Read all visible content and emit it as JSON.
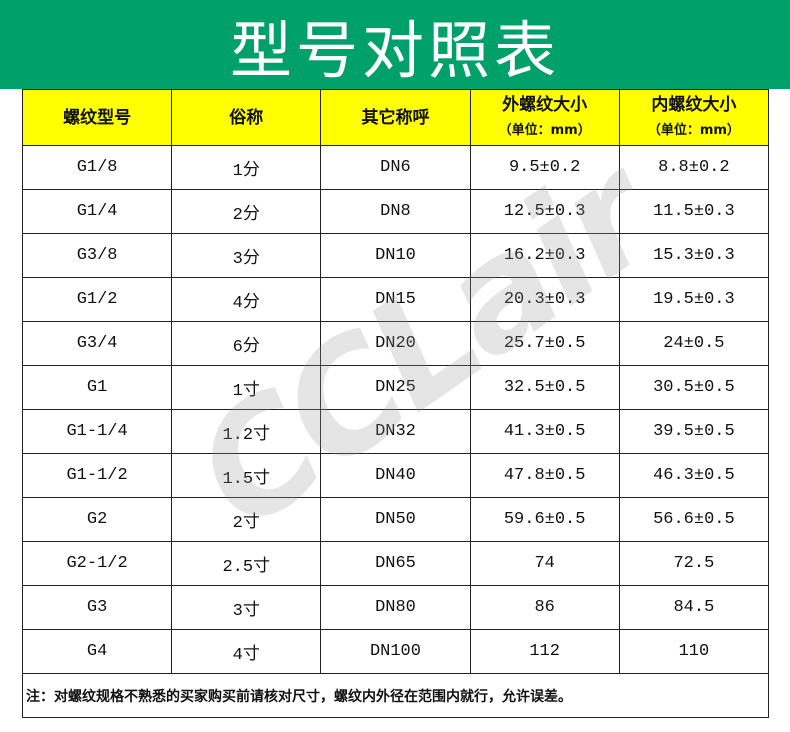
{
  "title": "型号对照表",
  "colors": {
    "banner": "#00a06a",
    "header_bg": "#ffff00"
  },
  "watermark_logo": "CCLair",
  "headers": [
    {
      "label": "螺纹型号",
      "unit": ""
    },
    {
      "label": "俗称",
      "unit": ""
    },
    {
      "label": "其它称呼",
      "unit": ""
    },
    {
      "label": "外螺纹大小",
      "unit": "（单位：mm）"
    },
    {
      "label": "内螺纹大小",
      "unit": "（单位：mm）"
    }
  ],
  "rows": [
    [
      "G1/8",
      "1分",
      "DN6",
      "9.5±0.2",
      "8.8±0.2"
    ],
    [
      "G1/4",
      "2分",
      "DN8",
      "12.5±0.3",
      "11.5±0.3"
    ],
    [
      "G3/8",
      "3分",
      "DN10",
      "16.2±0.3",
      "15.3±0.3"
    ],
    [
      "G1/2",
      "4分",
      "DN15",
      "20.3±0.3",
      "19.5±0.3"
    ],
    [
      "G3/4",
      "6分",
      "DN20",
      "25.7±0.5",
      "24±0.5"
    ],
    [
      "G1",
      "1寸",
      "DN25",
      "32.5±0.5",
      "30.5±0.5"
    ],
    [
      "G1-1/4",
      "1.2寸",
      "DN32",
      "41.3±0.5",
      "39.5±0.5"
    ],
    [
      "G1-1/2",
      "1.5寸",
      "DN40",
      "47.8±0.5",
      "46.3±0.5"
    ],
    [
      "G2",
      "2寸",
      "DN50",
      "59.6±0.5",
      "56.6±0.5"
    ],
    [
      "G2-1/2",
      "2.5寸",
      "DN65",
      "74",
      "72.5"
    ],
    [
      "G3",
      "3寸",
      "DN80",
      "86",
      "84.5"
    ],
    [
      "G4",
      "4寸",
      "DN100",
      "112",
      "110"
    ]
  ],
  "note": "注：对螺纹规格不熟悉的买家购买前请核对尺寸，螺纹内外径在范围内就行，允许误差。"
}
